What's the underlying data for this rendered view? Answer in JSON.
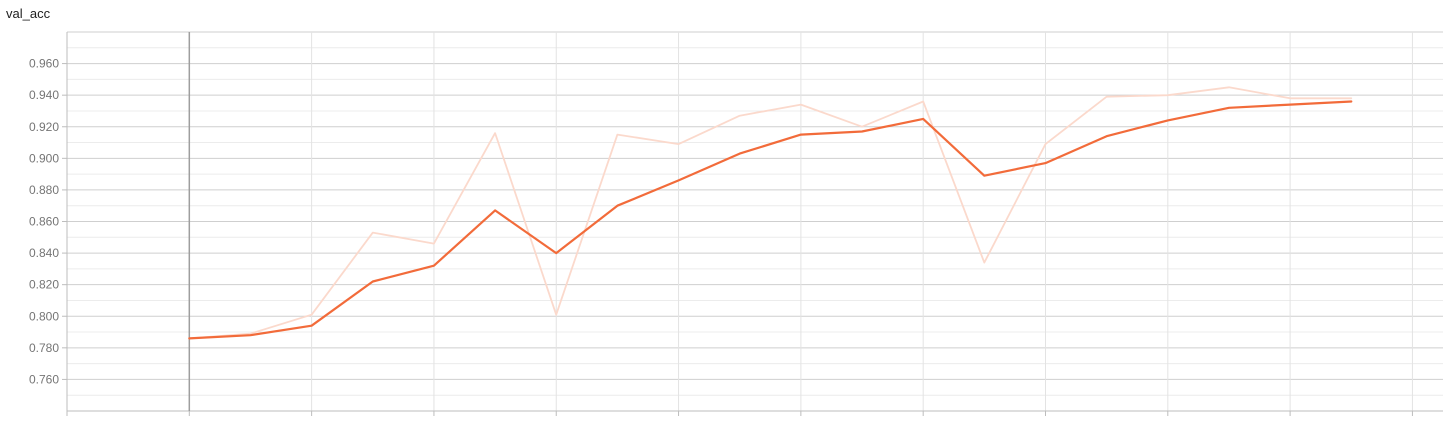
{
  "chart_data": {
    "type": "line",
    "title": "val_acc",
    "xlabel": "",
    "ylabel": "",
    "x": [
      0,
      1,
      2,
      3,
      4,
      5,
      6,
      7,
      8,
      9,
      10,
      11,
      12,
      13,
      14,
      15,
      16,
      17,
      18,
      19
    ],
    "xlim": [
      -2,
      20.5
    ],
    "ylim": [
      0.74,
      0.98
    ],
    "yticks": [
      "0.760",
      "0.780",
      "0.800",
      "0.820",
      "0.840",
      "0.860",
      "0.880",
      "0.900",
      "0.920",
      "0.940",
      "0.960"
    ],
    "grid": true,
    "colors": {
      "smoothed": "#f26b3a",
      "raw": "#fbd9cc",
      "grid": "#e0e0e0",
      "grid_major": "#cfcfcf",
      "cursor": "#9e9e9e"
    },
    "series": [
      {
        "values": [
          0.786,
          0.789,
          0.801,
          0.853,
          0.846,
          0.916,
          0.801,
          0.915,
          0.909,
          0.927,
          0.934,
          0.92,
          0.936,
          0.834,
          0.909,
          0.939,
          0.94,
          0.945,
          0.938,
          0.938
        ]
      },
      {
        "values": [
          0.786,
          0.788,
          0.794,
          0.822,
          0.832,
          0.867,
          0.84,
          0.87,
          0.886,
          0.903,
          0.915,
          0.917,
          0.925,
          0.889,
          0.897,
          0.914,
          0.924,
          0.932,
          0.934,
          0.936
        ]
      }
    ]
  }
}
